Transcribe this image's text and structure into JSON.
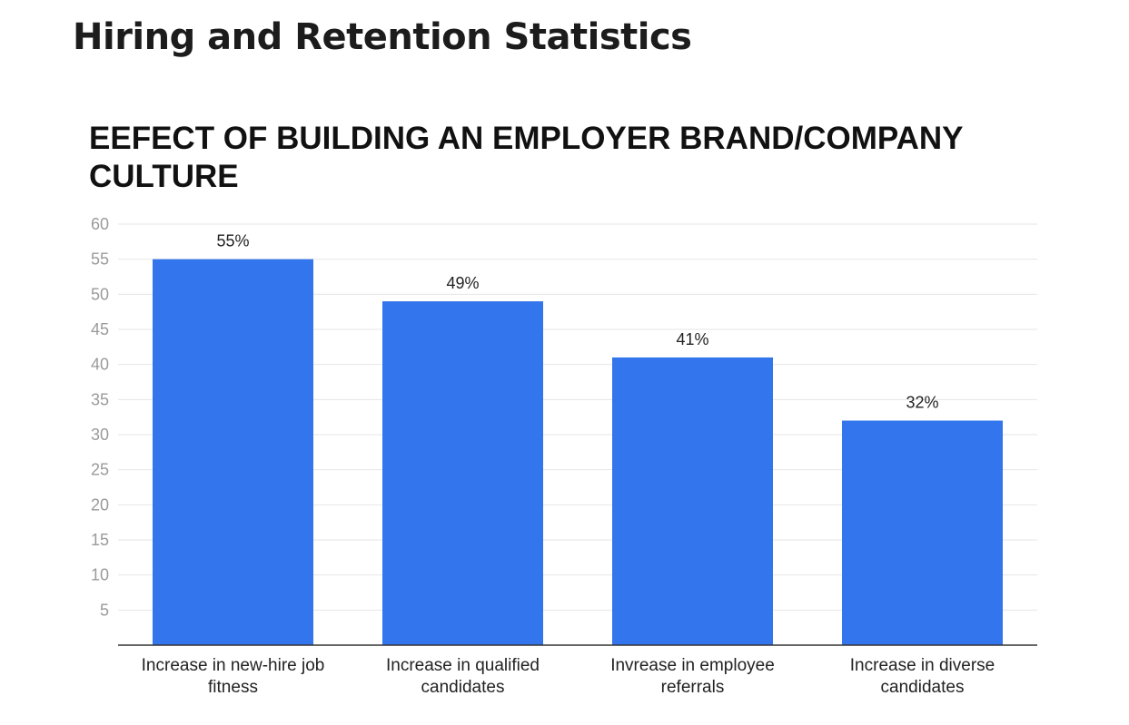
{
  "page": {
    "heading": "Hiring and Retention Statistics"
  },
  "chart_data": {
    "type": "bar",
    "title": "EEFECT OF BUILDING AN EMPLOYER BRAND/COMPANY CULTURE",
    "categories": [
      [
        "Increase in new-hire job",
        "fitness"
      ],
      [
        "Increase in qualified",
        "candidates"
      ],
      [
        "Invrease in employee",
        "referrals"
      ],
      [
        "Increase in diverse",
        "candidates"
      ]
    ],
    "values": [
      55,
      49,
      41,
      32
    ],
    "data_labels": [
      "55%",
      "49%",
      "41%",
      "32%"
    ],
    "yticks": [
      5,
      10,
      15,
      20,
      25,
      30,
      35,
      40,
      45,
      50,
      55,
      60
    ],
    "ylim": [
      0,
      60
    ],
    "xlabel": "",
    "ylabel": "",
    "grid": true,
    "legend": "none",
    "bar_color": "#3275ec",
    "gridline_color": "#e6e6e6",
    "axis_color": "#333333"
  }
}
